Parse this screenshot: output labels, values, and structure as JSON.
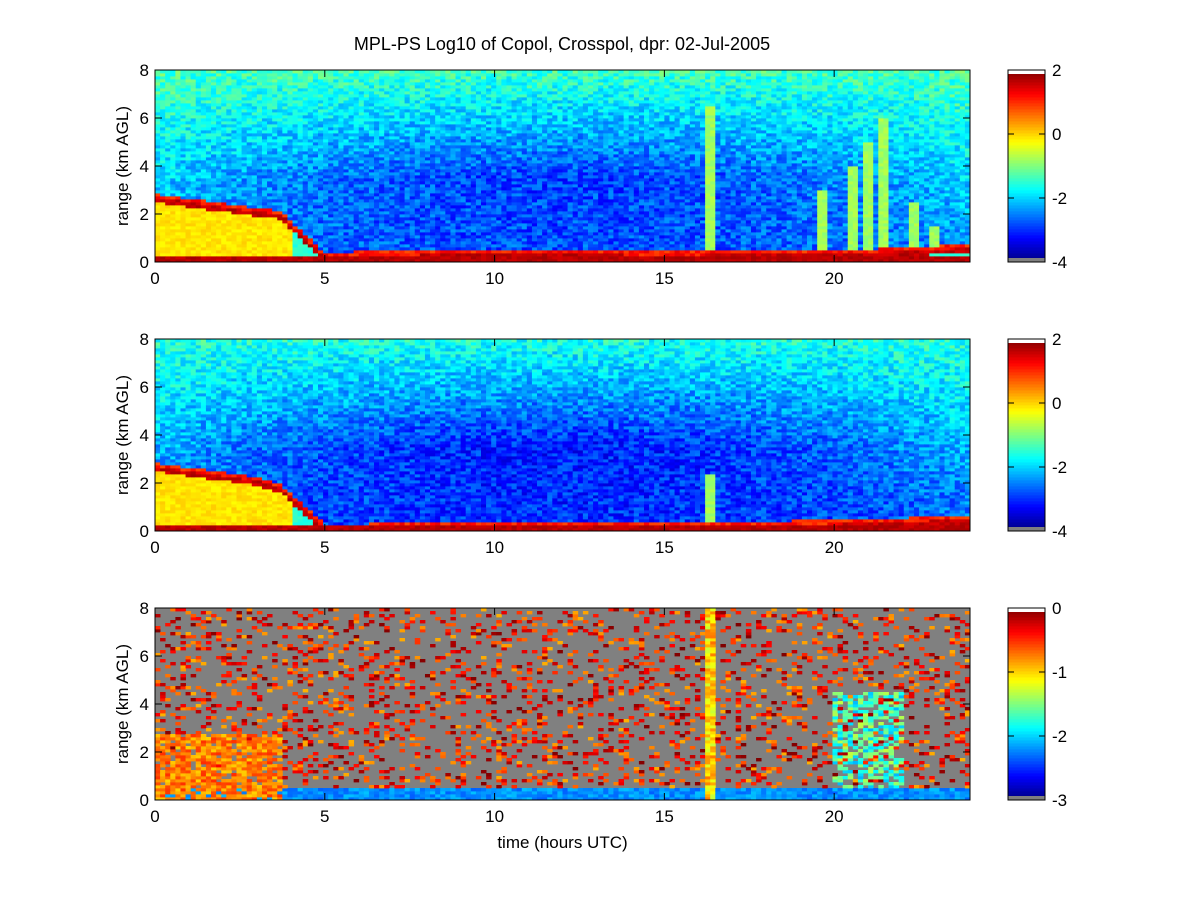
{
  "title": "MPL-PS Log10 of Copol, Crosspol, dpr: 02-Jul-2005",
  "chart_data": [
    {
      "type": "heatmap",
      "panel": "copol",
      "xlabel": "",
      "ylabel": "range (km AGL)",
      "xlim": [
        0,
        24
      ],
      "ylim": [
        0,
        8
      ],
      "xticks": [
        0,
        5,
        10,
        15,
        20
      ],
      "yticks": [
        0,
        2,
        4,
        6,
        8
      ],
      "colorbar": {
        "min": -4,
        "max": 2,
        "ticks": [
          -4,
          -2,
          0,
          2
        ]
      },
      "boundary_layer_top_km": [
        {
          "x": 0,
          "y": 2.7
        },
        {
          "x": 1,
          "y": 2.5
        },
        {
          "x": 2,
          "y": 2.3
        },
        {
          "x": 3,
          "y": 2.1
        },
        {
          "x": 3.7,
          "y": 2.0
        },
        {
          "x": 5,
          "y": 0.2
        },
        {
          "x": 6,
          "y": 0.3
        },
        {
          "x": 7,
          "y": 0.3
        },
        {
          "x": 10,
          "y": 0.35
        },
        {
          "x": 15,
          "y": 0.3
        },
        {
          "x": 20,
          "y": 0.35
        },
        {
          "x": 22,
          "y": 0.45
        },
        {
          "x": 24,
          "y": 0.6
        }
      ],
      "plumes": [
        {
          "x": 16.3,
          "top_km": 6.5
        },
        {
          "x": 19.7,
          "top_km": 3.0
        },
        {
          "x": 20.5,
          "top_km": 4.0
        },
        {
          "x": 21.0,
          "top_km": 5.0
        },
        {
          "x": 21.5,
          "top_km": 6.0
        },
        {
          "x": 22.3,
          "top_km": 2.5
        },
        {
          "x": 23.0,
          "top_km": 1.5
        }
      ],
      "mean_background": -2.5
    },
    {
      "type": "heatmap",
      "panel": "crosspol",
      "xlabel": "",
      "ylabel": "range (km AGL)",
      "xlim": [
        0,
        24
      ],
      "ylim": [
        0,
        8
      ],
      "xticks": [
        0,
        5,
        10,
        15,
        20
      ],
      "yticks": [
        0,
        2,
        4,
        6,
        8
      ],
      "colorbar": {
        "min": -4,
        "max": 2,
        "ticks": [
          -4,
          -2,
          0,
          2
        ]
      },
      "boundary_layer_top_km": [
        {
          "x": 0,
          "y": 2.7
        },
        {
          "x": 1,
          "y": 2.5
        },
        {
          "x": 2,
          "y": 2.3
        },
        {
          "x": 3,
          "y": 2.1
        },
        {
          "x": 3.7,
          "y": 1.8
        },
        {
          "x": 5,
          "y": 0.15
        },
        {
          "x": 10,
          "y": 0.2
        },
        {
          "x": 15,
          "y": 0.25
        },
        {
          "x": 20,
          "y": 0.3
        },
        {
          "x": 24,
          "y": 0.5
        }
      ],
      "plumes": [
        {
          "x": 16.3,
          "top_km": 2.4
        }
      ],
      "mean_background": -2.7
    },
    {
      "type": "heatmap",
      "panel": "dpr",
      "xlabel": "time (hours UTC)",
      "ylabel": "range (km AGL)",
      "xlim": [
        0,
        24
      ],
      "ylim": [
        0,
        8
      ],
      "xticks": [
        0,
        5,
        10,
        15,
        20
      ],
      "yticks": [
        0,
        2,
        4,
        6,
        8
      ],
      "colorbar": {
        "min": -3,
        "max": 0,
        "ticks": [
          -3,
          -2,
          -1,
          0
        ]
      },
      "missing_color": "#808080",
      "plumes": [
        {
          "x": 16.3,
          "top_km": 8.0
        }
      ],
      "speckle_region_hours": [
        20,
        22
      ]
    }
  ]
}
